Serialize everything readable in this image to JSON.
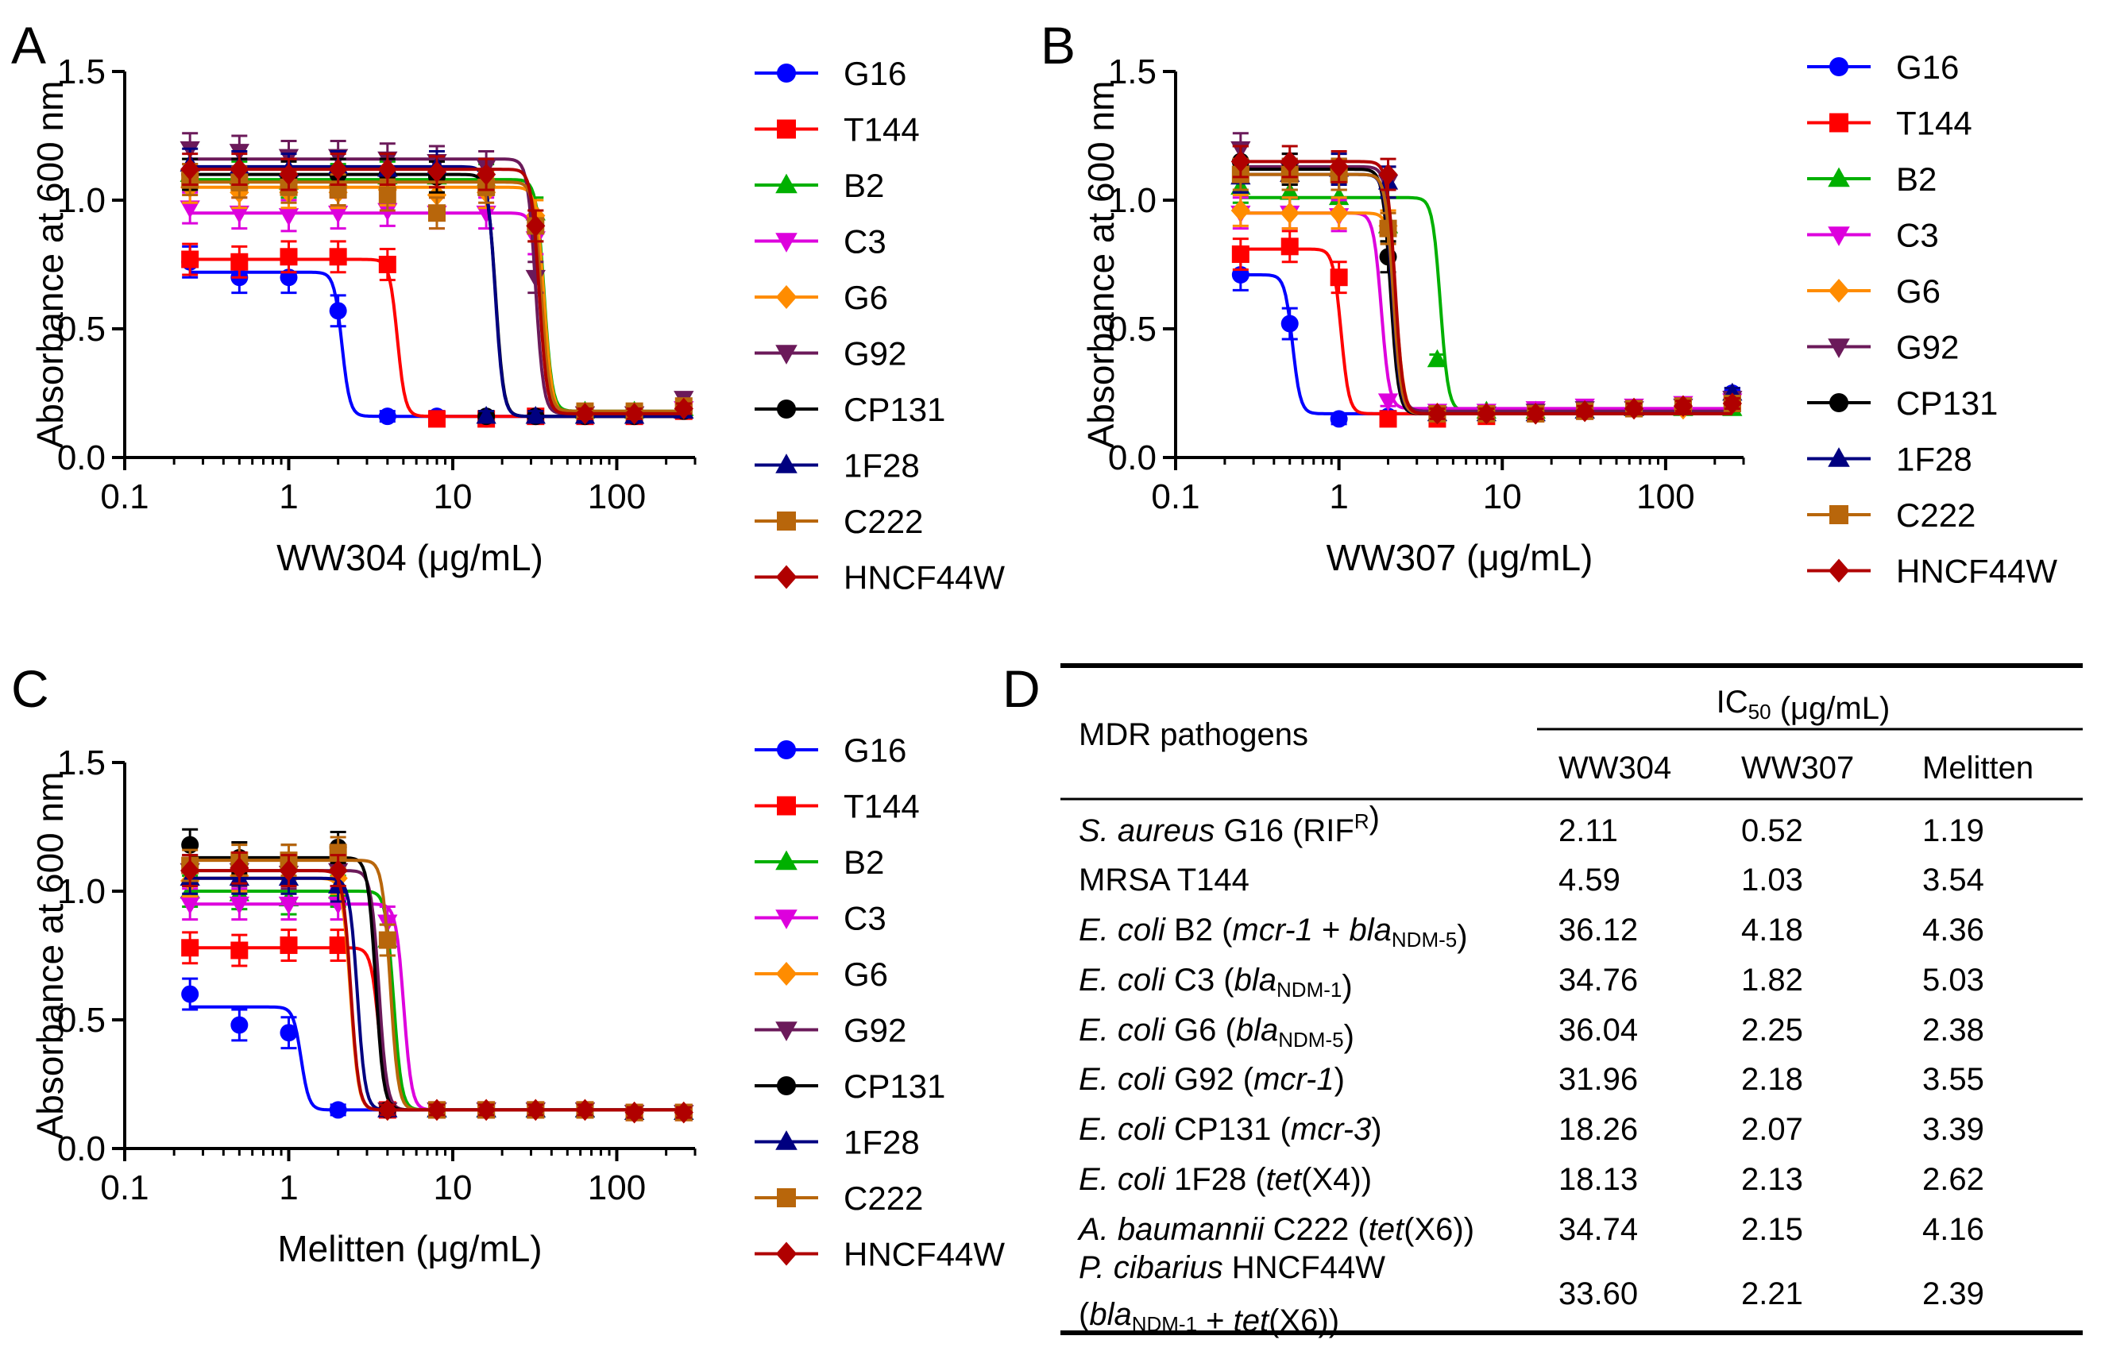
{
  "panels": {
    "A": {
      "letter": "A"
    },
    "B": {
      "letter": "B"
    },
    "C": {
      "letter": "C"
    },
    "D": {
      "letter": "D"
    }
  },
  "chart_data": [
    {
      "id": "A",
      "type": "line",
      "title": "",
      "xlabel": "WW304 (μg/mL)",
      "ylabel": "Absorbance at 600 nm",
      "xscale": "log",
      "xlim": [
        0.1,
        300
      ],
      "ylim": [
        0.0,
        1.5
      ],
      "xticks": [
        0.1,
        1,
        10,
        100
      ],
      "xtick_labels": [
        "0.1",
        "1",
        "10",
        "100"
      ],
      "yticks": [
        0.0,
        0.5,
        1.0,
        1.5
      ],
      "ytick_labels": [
        "0.0",
        "0.5",
        "1.0",
        "1.5"
      ],
      "x": [
        0.25,
        0.5,
        1,
        2,
        4,
        8,
        16,
        32,
        64,
        128,
        256
      ],
      "series": [
        {
          "name": "G16",
          "color": "#0000ff",
          "marker": "circle",
          "top": 0.72,
          "bottom": 0.16,
          "ic50": 2.11,
          "values": [
            0.76,
            0.7,
            0.7,
            0.57,
            0.16,
            0.16,
            0.15,
            0.16,
            0.16,
            0.16,
            0.19
          ]
        },
        {
          "name": "T144",
          "color": "#ff0000",
          "marker": "square",
          "top": 0.77,
          "bottom": 0.16,
          "ic50": 4.59,
          "values": [
            0.77,
            0.76,
            0.78,
            0.78,
            0.75,
            0.15,
            0.15,
            0.16,
            0.16,
            0.16,
            0.18
          ]
        },
        {
          "name": "B2",
          "color": "#00b000",
          "marker": "triangle-up",
          "top": 1.08,
          "bottom": 0.18,
          "ic50": 36.12,
          "values": [
            1.1,
            1.09,
            1.07,
            1.08,
            1.09,
            1.09,
            1.08,
            0.95,
            0.18,
            0.18,
            0.19
          ]
        },
        {
          "name": "C3",
          "color": "#dd00dd",
          "marker": "triangle-down",
          "top": 0.95,
          "bottom": 0.17,
          "ic50": 34.76,
          "values": [
            0.97,
            0.95,
            0.94,
            0.95,
            0.96,
            0.95,
            0.95,
            0.85,
            0.17,
            0.17,
            0.19
          ]
        },
        {
          "name": "G6",
          "color": "#ff8c00",
          "marker": "diamond",
          "top": 1.05,
          "bottom": 0.17,
          "ic50": 36.04,
          "values": [
            1.05,
            1.03,
            1.03,
            1.03,
            1.04,
            1.02,
            1.03,
            0.94,
            0.17,
            0.17,
            0.19
          ]
        },
        {
          "name": "G92",
          "color": "#6b1a5a",
          "marker": "triangle-down",
          "top": 1.16,
          "bottom": 0.17,
          "ic50": 31.96,
          "values": [
            1.2,
            1.19,
            1.17,
            1.17,
            1.16,
            1.15,
            1.13,
            0.7,
            0.17,
            0.17,
            0.23
          ]
        },
        {
          "name": "CP131",
          "color": "#000000",
          "marker": "circle",
          "top": 1.1,
          "bottom": 0.16,
          "ic50": 18.26,
          "values": [
            1.1,
            1.1,
            1.09,
            1.1,
            1.1,
            1.09,
            0.16,
            0.16,
            0.16,
            0.16,
            0.18
          ]
        },
        {
          "name": "1F28",
          "color": "#000080",
          "marker": "triangle-up",
          "top": 1.13,
          "bottom": 0.16,
          "ic50": 18.13,
          "values": [
            1.14,
            1.13,
            1.12,
            1.13,
            1.12,
            1.13,
            0.16,
            0.16,
            0.16,
            0.16,
            0.18
          ]
        },
        {
          "name": "C222",
          "color": "#b8660b",
          "marker": "square",
          "top": 1.07,
          "bottom": 0.18,
          "ic50": 34.74,
          "values": [
            1.08,
            1.07,
            1.05,
            1.04,
            1.02,
            0.95,
            1.05,
            0.9,
            0.18,
            0.18,
            0.2
          ]
        },
        {
          "name": "HNCF44W",
          "color": "#b00000",
          "marker": "diamond",
          "top": 1.12,
          "bottom": 0.17,
          "ic50": 33.6,
          "values": [
            1.12,
            1.12,
            1.1,
            1.12,
            1.12,
            1.11,
            1.1,
            0.9,
            0.17,
            0.17,
            0.19
          ]
        }
      ]
    },
    {
      "id": "B",
      "type": "line",
      "title": "",
      "xlabel": "WW307 (μg/mL)",
      "ylabel": "Absorbance at 600 nm",
      "xscale": "log",
      "xlim": [
        0.1,
        300
      ],
      "ylim": [
        0.0,
        1.5
      ],
      "xticks": [
        0.1,
        1,
        10,
        100
      ],
      "xtick_labels": [
        "0.1",
        "1",
        "10",
        "100"
      ],
      "yticks": [
        0.0,
        0.5,
        1.0,
        1.5
      ],
      "ytick_labels": [
        "0.0",
        "0.5",
        "1.0",
        "1.5"
      ],
      "x": [
        0.25,
        0.5,
        1,
        2,
        4,
        8,
        16,
        32,
        64,
        128,
        256
      ],
      "series": [
        {
          "name": "G16",
          "color": "#0000ff",
          "marker": "circle",
          "top": 0.71,
          "bottom": 0.17,
          "ic50": 0.52,
          "values": [
            0.71,
            0.52,
            0.15,
            0.16,
            0.16,
            0.17,
            0.17,
            0.18,
            0.19,
            0.2,
            0.25
          ]
        },
        {
          "name": "T144",
          "color": "#ff0000",
          "marker": "square",
          "top": 0.81,
          "bottom": 0.17,
          "ic50": 1.03,
          "values": [
            0.79,
            0.82,
            0.7,
            0.15,
            0.15,
            0.16,
            0.17,
            0.18,
            0.19,
            0.2,
            0.21
          ]
        },
        {
          "name": "B2",
          "color": "#00b000",
          "marker": "triangle-up",
          "top": 1.01,
          "bottom": 0.18,
          "ic50": 4.18,
          "values": [
            1.05,
            1.03,
            1.01,
            0.9,
            0.38,
            0.18,
            0.18,
            0.18,
            0.19,
            0.19,
            0.19
          ]
        },
        {
          "name": "C3",
          "color": "#dd00dd",
          "marker": "triangle-down",
          "top": 0.95,
          "bottom": 0.19,
          "ic50": 1.82,
          "values": [
            0.95,
            0.95,
            0.94,
            0.22,
            0.18,
            0.18,
            0.19,
            0.2,
            0.2,
            0.21,
            0.22
          ]
        },
        {
          "name": "G6",
          "color": "#ff8c00",
          "marker": "diamond",
          "top": 0.95,
          "bottom": 0.17,
          "ic50": 2.25,
          "values": [
            0.96,
            0.95,
            0.95,
            0.9,
            0.17,
            0.17,
            0.17,
            0.18,
            0.19,
            0.19,
            0.21
          ]
        },
        {
          "name": "G92",
          "color": "#6b1a5a",
          "marker": "triangle-down",
          "top": 1.13,
          "bottom": 0.18,
          "ic50": 2.18,
          "values": [
            1.2,
            1.12,
            1.1,
            1.07,
            0.17,
            0.17,
            0.18,
            0.19,
            0.19,
            0.2,
            0.23
          ]
        },
        {
          "name": "CP131",
          "color": "#000000",
          "marker": "circle",
          "top": 1.12,
          "bottom": 0.17,
          "ic50": 2.07,
          "values": [
            1.15,
            1.12,
            1.1,
            0.78,
            0.17,
            0.17,
            0.17,
            0.18,
            0.19,
            0.2,
            0.21
          ]
        },
        {
          "name": "1F28",
          "color": "#000080",
          "marker": "triangle-up",
          "top": 1.1,
          "bottom": 0.17,
          "ic50": 2.13,
          "values": [
            1.09,
            1.1,
            1.12,
            1.07,
            0.17,
            0.17,
            0.17,
            0.18,
            0.19,
            0.2,
            0.25
          ]
        },
        {
          "name": "C222",
          "color": "#b8660b",
          "marker": "square",
          "top": 1.1,
          "bottom": 0.17,
          "ic50": 2.15,
          "values": [
            1.1,
            1.1,
            1.1,
            0.89,
            0.17,
            0.17,
            0.17,
            0.18,
            0.19,
            0.2,
            0.21
          ]
        },
        {
          "name": "HNCF44W",
          "color": "#b00000",
          "marker": "diamond",
          "top": 1.15,
          "bottom": 0.17,
          "ic50": 2.21,
          "values": [
            1.15,
            1.15,
            1.13,
            1.1,
            0.17,
            0.17,
            0.17,
            0.18,
            0.19,
            0.2,
            0.21
          ]
        }
      ]
    },
    {
      "id": "C",
      "type": "line",
      "title": "",
      "xlabel": "Melitten (μg/mL)",
      "ylabel": "Absorbance at 600 nm",
      "xscale": "log",
      "xlim": [
        0.1,
        300
      ],
      "ylim": [
        0.0,
        1.5
      ],
      "xticks": [
        0.1,
        1,
        10,
        100
      ],
      "xtick_labels": [
        "0.1",
        "1",
        "10",
        "100"
      ],
      "yticks": [
        0.0,
        0.5,
        1.0,
        1.5
      ],
      "ytick_labels": [
        "0.0",
        "0.5",
        "1.0",
        "1.5"
      ],
      "x": [
        0.25,
        0.5,
        1,
        2,
        4,
        8,
        16,
        32,
        64,
        128,
        256
      ],
      "series": [
        {
          "name": "G16",
          "color": "#0000ff",
          "marker": "circle",
          "top": 0.55,
          "bottom": 0.15,
          "ic50": 1.19,
          "values": [
            0.6,
            0.48,
            0.45,
            0.15,
            0.15,
            0.15,
            0.15,
            0.15,
            0.15,
            0.14,
            0.14
          ]
        },
        {
          "name": "T144",
          "color": "#ff0000",
          "marker": "square",
          "top": 0.78,
          "bottom": 0.15,
          "ic50": 3.54,
          "values": [
            0.78,
            0.77,
            0.79,
            0.79,
            0.15,
            0.15,
            0.15,
            0.15,
            0.15,
            0.14,
            0.14
          ]
        },
        {
          "name": "B2",
          "color": "#00b000",
          "marker": "triangle-up",
          "top": 1.0,
          "bottom": 0.15,
          "ic50": 4.36,
          "values": [
            1.0,
            0.99,
            0.97,
            1.0,
            0.81,
            0.15,
            0.15,
            0.15,
            0.15,
            0.14,
            0.14
          ]
        },
        {
          "name": "C3",
          "color": "#dd00dd",
          "marker": "triangle-down",
          "top": 0.95,
          "bottom": 0.15,
          "ic50": 5.03,
          "values": [
            0.95,
            0.95,
            0.95,
            0.95,
            0.88,
            0.15,
            0.15,
            0.15,
            0.15,
            0.14,
            0.14
          ]
        },
        {
          "name": "G6",
          "color": "#ff8c00",
          "marker": "diamond",
          "top": 1.05,
          "bottom": 0.15,
          "ic50": 2.38,
          "values": [
            1.04,
            1.06,
            1.05,
            1.05,
            0.15,
            0.15,
            0.15,
            0.15,
            0.15,
            0.14,
            0.14
          ]
        },
        {
          "name": "G92",
          "color": "#6b1a5a",
          "marker": "triangle-down",
          "top": 1.08,
          "bottom": 0.15,
          "ic50": 3.55,
          "values": [
            1.08,
            1.08,
            1.07,
            1.08,
            0.15,
            0.15,
            0.15,
            0.15,
            0.15,
            0.14,
            0.14
          ]
        },
        {
          "name": "CP131",
          "color": "#000000",
          "marker": "circle",
          "top": 1.13,
          "bottom": 0.15,
          "ic50": 3.39,
          "values": [
            1.18,
            1.13,
            1.12,
            1.17,
            0.15,
            0.15,
            0.15,
            0.15,
            0.15,
            0.14,
            0.14
          ]
        },
        {
          "name": "1F28",
          "color": "#000080",
          "marker": "triangle-up",
          "top": 1.05,
          "bottom": 0.15,
          "ic50": 2.62,
          "values": [
            1.05,
            1.05,
            1.05,
            1.02,
            0.15,
            0.15,
            0.15,
            0.15,
            0.15,
            0.14,
            0.14
          ]
        },
        {
          "name": "C222",
          "color": "#b8660b",
          "marker": "square",
          "top": 1.12,
          "bottom": 0.15,
          "ic50": 4.16,
          "values": [
            1.1,
            1.12,
            1.12,
            1.15,
            0.81,
            0.15,
            0.15,
            0.15,
            0.15,
            0.14,
            0.14
          ]
        },
        {
          "name": "HNCF44W",
          "color": "#b00000",
          "marker": "diamond",
          "top": 1.08,
          "bottom": 0.15,
          "ic50": 2.39,
          "values": [
            1.08,
            1.09,
            1.08,
            1.08,
            0.15,
            0.15,
            0.15,
            0.15,
            0.15,
            0.14,
            0.14
          ]
        }
      ]
    },
    {
      "id": "D",
      "type": "table",
      "title": "",
      "header_group": {
        "main": "IC",
        "sub": "50",
        "rest": " (μg/mL)"
      },
      "header_first": "MDR pathogens",
      "columns": [
        "WW304",
        "WW307",
        "Melitten"
      ],
      "rows": [
        {
          "label": [
            {
              "t": "S. aureus",
              "i": true
            },
            {
              "t": " G16 (RIF"
            },
            {
              "t": "R",
              "sup": true
            },
            {
              "t": ")"
            }
          ],
          "values": [
            "2.11",
            "0.52",
            "1.19"
          ]
        },
        {
          "label": [
            {
              "t": "MRSA T144"
            }
          ],
          "values": [
            "4.59",
            "1.03",
            "3.54"
          ]
        },
        {
          "label": [
            {
              "t": "E. coli",
              "i": true
            },
            {
              "t": " B2 ("
            },
            {
              "t": "mcr-1",
              "i": true
            },
            {
              "t": " + "
            },
            {
              "t": "bla",
              "i": true
            },
            {
              "t": "NDM-5",
              "sub": true
            },
            {
              "t": ")"
            }
          ],
          "values": [
            "36.12",
            "4.18",
            "4.36"
          ]
        },
        {
          "label": [
            {
              "t": "E. coli",
              "i": true
            },
            {
              "t": " C3 ("
            },
            {
              "t": "bla",
              "i": true
            },
            {
              "t": "NDM-1",
              "sub": true
            },
            {
              "t": ")"
            }
          ],
          "values": [
            "34.76",
            "1.82",
            "5.03"
          ]
        },
        {
          "label": [
            {
              "t": "E. coli",
              "i": true
            },
            {
              "t": " G6 ("
            },
            {
              "t": "bla",
              "i": true
            },
            {
              "t": "NDM-5",
              "sub": true
            },
            {
              "t": ")"
            }
          ],
          "values": [
            "36.04",
            "2.25",
            "2.38"
          ]
        },
        {
          "label": [
            {
              "t": "E. coli",
              "i": true
            },
            {
              "t": " G92 ("
            },
            {
              "t": "mcr-1",
              "i": true
            },
            {
              "t": ")"
            }
          ],
          "values": [
            "31.96",
            "2.18",
            "3.55"
          ]
        },
        {
          "label": [
            {
              "t": "E. coli",
              "i": true
            },
            {
              "t": " CP131 ("
            },
            {
              "t": "mcr-3",
              "i": true
            },
            {
              "t": ")"
            }
          ],
          "values": [
            "18.26",
            "2.07",
            "3.39"
          ]
        },
        {
          "label": [
            {
              "t": "E. coli",
              "i": true
            },
            {
              "t": " 1F28 ("
            },
            {
              "t": "tet",
              "i": true
            },
            {
              "t": "(X4))"
            }
          ],
          "values": [
            "18.13",
            "2.13",
            "2.62"
          ]
        },
        {
          "label": [
            {
              "t": "A. baumannii",
              "i": true
            },
            {
              "t": " C222 ("
            },
            {
              "t": "tet",
              "i": true
            },
            {
              "t": "(X6))"
            }
          ],
          "values": [
            "34.74",
            "2.15",
            "4.16"
          ]
        },
        {
          "label": [
            {
              "t": "P. cibarius",
              "i": true
            },
            {
              "t": " HNCF44W"
            }
          ],
          "label2": [
            {
              "t": "("
            },
            {
              "t": "bla",
              "i": true
            },
            {
              "t": "NDM-1",
              "sub": true
            },
            {
              "t": " + "
            },
            {
              "t": "tet",
              "i": true
            },
            {
              "t": "(X6))"
            }
          ],
          "values": [
            "33.60",
            "2.21",
            "2.39"
          ]
        }
      ]
    }
  ]
}
